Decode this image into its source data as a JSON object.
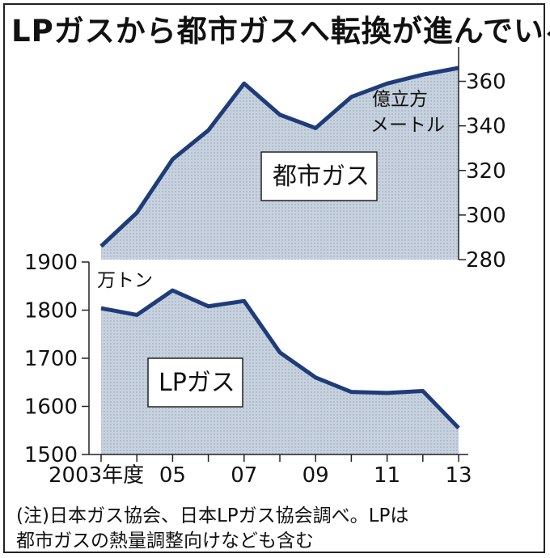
{
  "title": "LPガスから都市ガスへ転換が進んでいる",
  "note_line1": "(注)日本ガス協会、日本LPガス協会調べ。LPは",
  "note_line2": "都市ガスの熱量調整向けなども含む",
  "colors": {
    "line": "#1f3c7a",
    "fill": "#c7d2de",
    "frame": "#222222"
  },
  "chart_data": [
    {
      "type": "area",
      "series_label": "都市ガス",
      "unit_label_line1": "億立方",
      "unit_label_line2": "メートル",
      "axis_side": "right",
      "x": [
        2003,
        2004,
        2005,
        2006,
        2007,
        2008,
        2009,
        2010,
        2011,
        2012,
        2013
      ],
      "values": [
        286,
        301,
        325,
        338,
        359,
        345,
        339,
        353,
        359,
        363,
        366
      ],
      "ylim": [
        280,
        366
      ],
      "yticks": [
        "280",
        "300",
        "320",
        "340",
        "360"
      ]
    },
    {
      "type": "area",
      "series_label": "LPガス",
      "unit_label": "万トン",
      "axis_side": "left",
      "x": [
        2003,
        2004,
        2005,
        2006,
        2007,
        2008,
        2009,
        2010,
        2011,
        2012,
        2013
      ],
      "values": [
        1804,
        1790,
        1841,
        1808,
        1819,
        1712,
        1660,
        1630,
        1628,
        1632,
        1555
      ],
      "ylim": [
        1500,
        1900
      ],
      "yticks": [
        "1500",
        "1600",
        "1700",
        "1800",
        "1900"
      ]
    }
  ],
  "x_tick_labels": [
    "2003年度",
    "05",
    "07",
    "09",
    "11",
    "13"
  ]
}
